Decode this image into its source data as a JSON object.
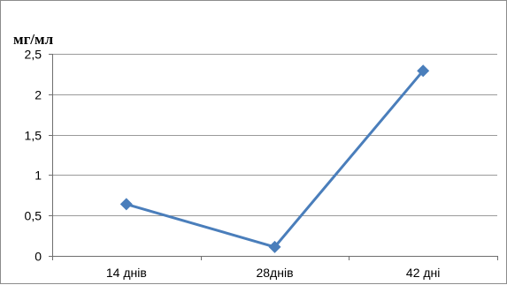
{
  "chart_data": {
    "type": "line",
    "title": "",
    "unit_label": "мг/мл",
    "xlabel": "",
    "ylabel": "мг/мл",
    "categories": [
      "14 днів",
      "28днів",
      "42 дні"
    ],
    "series": [
      {
        "values": [
          0.64,
          0.11,
          2.29
        ],
        "color": "#4a7ebb",
        "marker": "diamond"
      }
    ],
    "ylim": [
      0,
      2.5
    ],
    "yticks": [
      "0",
      "0,5",
      "1",
      "1,5",
      "2",
      "2,5"
    ],
    "ytick_values": [
      0,
      0.5,
      1,
      1.5,
      2,
      2.5
    ],
    "grid": true,
    "legend": "none"
  }
}
